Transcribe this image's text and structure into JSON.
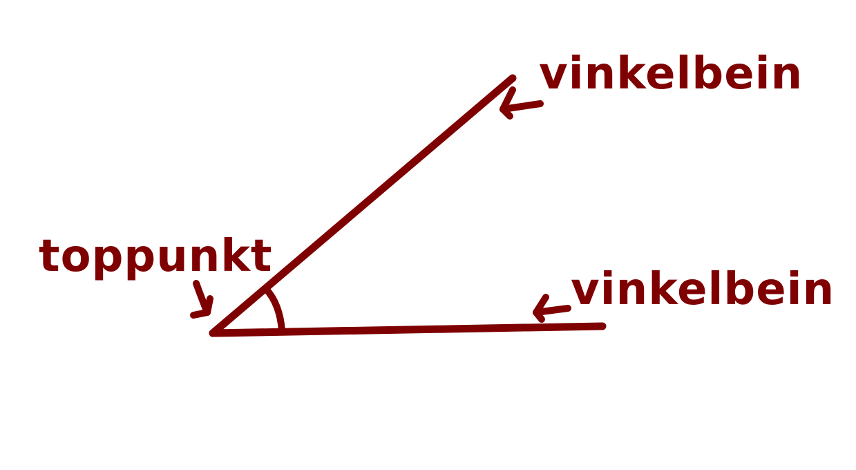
{
  "colors": {
    "ink": "#7f0000",
    "background": "#ffffff"
  },
  "labels": {
    "vertex": "toppunkt",
    "arm_upper": "vinkelbein",
    "arm_lower": "vinkelbein"
  },
  "icons": {
    "vertex_arrow": "arrow-down-right-icon",
    "upper_arm_arrow": "arrow-down-left-icon",
    "lower_arm_arrow": "arrow-down-left-icon",
    "angle_marker": "angle-arc-icon"
  }
}
